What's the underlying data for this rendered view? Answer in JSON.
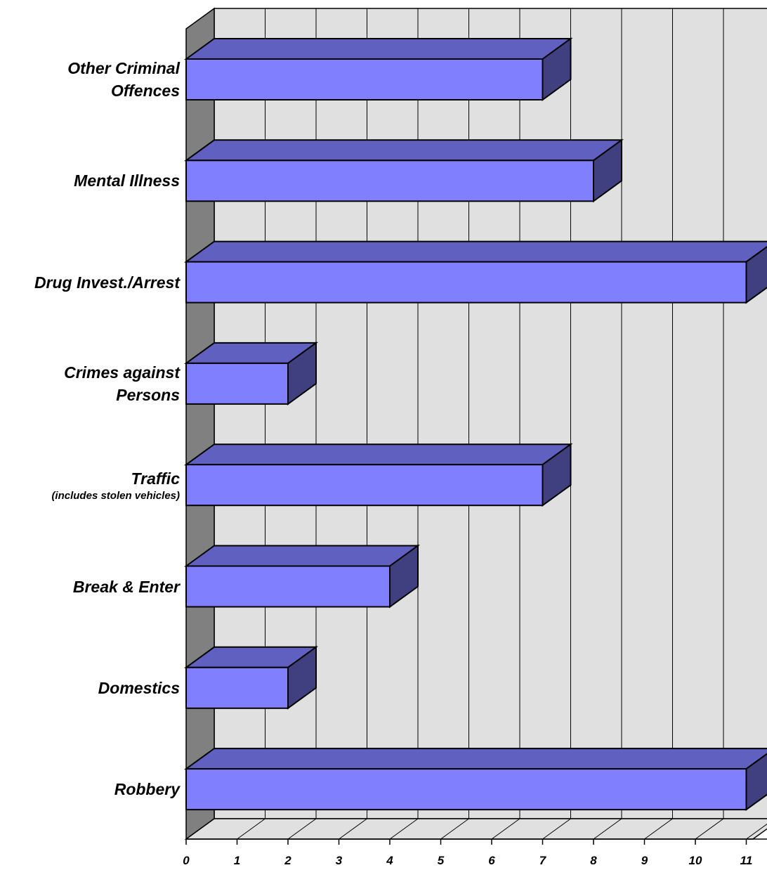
{
  "chart_data": {
    "type": "bar",
    "orientation": "horizontal",
    "style": "3d",
    "categories": [
      {
        "lines": [
          "Other Criminal",
          "Offences"
        ],
        "sub": ""
      },
      {
        "lines": [
          "Mental Illness"
        ],
        "sub": ""
      },
      {
        "lines": [
          "Drug Invest./Arrest"
        ],
        "sub": ""
      },
      {
        "lines": [
          "Crimes against",
          "Persons"
        ],
        "sub": ""
      },
      {
        "lines": [
          "Traffic"
        ],
        "sub": "(includes stolen vehicles)"
      },
      {
        "lines": [
          "Break & Enter"
        ],
        "sub": ""
      },
      {
        "lines": [
          "Domestics"
        ],
        "sub": ""
      },
      {
        "lines": [
          "Robbery"
        ],
        "sub": ""
      }
    ],
    "values": [
      7,
      8,
      11,
      2,
      7,
      4,
      2,
      11
    ],
    "xticks": [
      "0",
      "1",
      "2",
      "3",
      "4",
      "5",
      "6",
      "7",
      "8",
      "9",
      "10",
      "11"
    ],
    "xlim": [
      0,
      11
    ],
    "grid": true,
    "title": "",
    "xlabel": "",
    "ylabel": "",
    "colors": {
      "bar_front": "#8080ff",
      "bar_top": "#6060c0",
      "bar_side": "#404080",
      "wall_back": "#e0e0e0",
      "wall_left": "#808080",
      "floor": "#e0e0e0",
      "gridline": "#000000"
    }
  }
}
